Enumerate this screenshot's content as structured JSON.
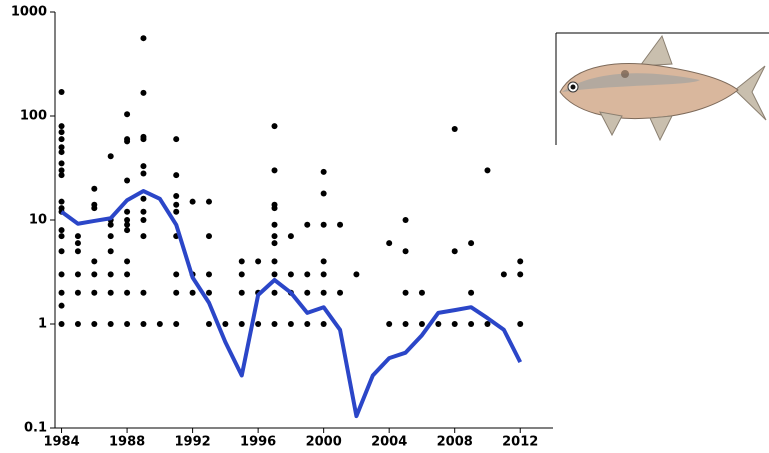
{
  "chart_data": {
    "type": "scatter-line",
    "log_y": true,
    "xlim": [
      1983.6,
      2014
    ],
    "ylim": [
      0.1,
      1000
    ],
    "xticks": [
      1984,
      1988,
      1992,
      1996,
      2000,
      2004,
      2008,
      2012
    ],
    "yticks": [
      1000,
      100,
      10,
      1,
      0.1
    ],
    "series": [
      {
        "type": "scatter",
        "color": "#000000",
        "x": [
          1984,
          1984,
          1984,
          1984,
          1984,
          1984,
          1984,
          1984,
          1984,
          1984,
          1984,
          1984,
          1984,
          1984,
          1984,
          1984,
          1984,
          1984,
          1984,
          1985,
          1985,
          1985,
          1985,
          1985,
          1985,
          1986,
          1986,
          1986,
          1986,
          1986,
          1986,
          1986,
          1987,
          1987,
          1987,
          1987,
          1987,
          1987,
          1987,
          1987,
          1988,
          1988,
          1988,
          1988,
          1988,
          1988,
          1988,
          1988,
          1988,
          1988,
          1988,
          1988,
          1989,
          1989,
          1989,
          1989,
          1989,
          1989,
          1989,
          1989,
          1989,
          1989,
          1989,
          1989,
          1990,
          1991,
          1991,
          1991,
          1991,
          1991,
          1991,
          1991,
          1991,
          1991,
          1992,
          1992,
          1992,
          1993,
          1993,
          1993,
          1993,
          1993,
          1994,
          1995,
          1995,
          1995,
          1995,
          1996,
          1996,
          1996,
          1997,
          1997,
          1997,
          1997,
          1997,
          1997,
          1997,
          1997,
          1997,
          1997,
          1997,
          1998,
          1998,
          1998,
          1998,
          1999,
          1999,
          1999,
          1999,
          2000,
          2000,
          2000,
          2000,
          2000,
          2000,
          2000,
          2001,
          2001,
          2002,
          2004,
          2004,
          2005,
          2005,
          2005,
          2005,
          2006,
          2006,
          2007,
          2008,
          2008,
          2008,
          2009,
          2009,
          2009,
          2010,
          2010,
          2011,
          2012,
          2012,
          2012
        ],
        "values": [
          170,
          80,
          70,
          60,
          50,
          45,
          35,
          30,
          27,
          15,
          13,
          12,
          8,
          7,
          5,
          3,
          2,
          1.5,
          1,
          7,
          6,
          5,
          3,
          2,
          1,
          20,
          14,
          13,
          4,
          3,
          2,
          1,
          41,
          10,
          9,
          7,
          5,
          3,
          2,
          1,
          104,
          60,
          57,
          24,
          12,
          10,
          9,
          8,
          4,
          3,
          2,
          1,
          560,
          167,
          63,
          60,
          33,
          28,
          16,
          12,
          10,
          7,
          2,
          1,
          1,
          60,
          27,
          17,
          14,
          12,
          7,
          3,
          2,
          1,
          15,
          3,
          2,
          15,
          7,
          3,
          2,
          1,
          1,
          4,
          3,
          2,
          1,
          4,
          2,
          1,
          80,
          30,
          14,
          13,
          9,
          7,
          6,
          4,
          3,
          2,
          1,
          7,
          3,
          2,
          1,
          9,
          3,
          2,
          1,
          29,
          18,
          9,
          4,
          3,
          2,
          1,
          9,
          2,
          3,
          6,
          1,
          10,
          5,
          2,
          1,
          2,
          1,
          1,
          75,
          5,
          1,
          6,
          2,
          1,
          30,
          1,
          3,
          4,
          3,
          1
        ]
      },
      {
        "type": "line",
        "color": "#2b46c8",
        "x": [
          1984,
          1985,
          1986,
          1987,
          1988,
          1989,
          1990,
          1991,
          1992,
          1993,
          1994,
          1995,
          1996,
          1997,
          1998,
          1999,
          2000,
          2001,
          2002,
          2003,
          2004,
          2005,
          2006,
          2007,
          2008,
          2009,
          2010,
          2011,
          2012
        ],
        "values": [
          12,
          9.2,
          9.8,
          10.4,
          15.5,
          19,
          16,
          9,
          2.8,
          1.6,
          0.67,
          0.32,
          1.9,
          2.65,
          2,
          1.28,
          1.45,
          0.88,
          0.13,
          0.32,
          0.47,
          0.53,
          0.78,
          1.28,
          1.36,
          1.45,
          1.14,
          0.88,
          0.43
        ]
      }
    ]
  }
}
